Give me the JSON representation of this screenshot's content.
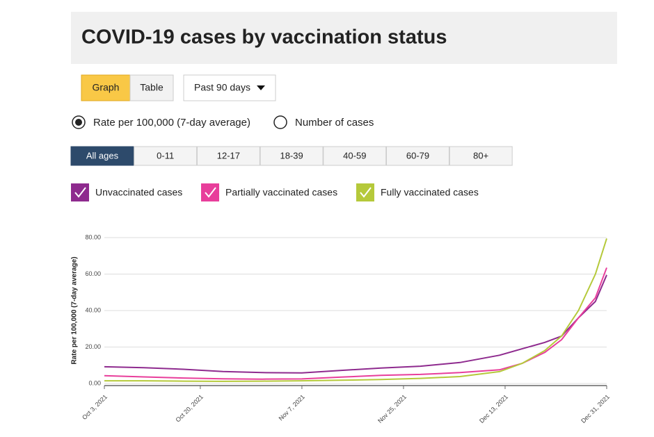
{
  "controls": {
    "view_buttons": [
      "Graph",
      "Table"
    ],
    "period": "Past 90 days",
    "measures": [
      "Rate per 100,000 (7-day average)",
      "Number of cases"
    ],
    "age_groups": [
      "All ages",
      "0-11",
      "12-17",
      "18-39",
      "40-59",
      "60-79",
      "80+"
    ]
  },
  "chart_data": {
    "type": "line",
    "title": "COVID-19 cases by vaccination status",
    "y_label": "Rate per 100,000 (7-day average)",
    "x": [
      "2021-10-03",
      "2021-10-10",
      "2021-10-17",
      "2021-10-24",
      "2021-10-31",
      "2021-11-07",
      "2021-11-14",
      "2021-11-21",
      "2021-11-28",
      "2021-12-05",
      "2021-12-12",
      "2021-12-16",
      "2021-12-20",
      "2021-12-23",
      "2021-12-26",
      "2021-12-29",
      "2021-12-31"
    ],
    "xlim": [
      "2021-10-03",
      "2021-12-31"
    ],
    "xticks": [
      {
        "value": "2021-10-03",
        "label": "Oct 3, 2021"
      },
      {
        "value": "2021-10-20",
        "label": "Oct 20, 2021"
      },
      {
        "value": "2021-11-07",
        "label": "Nov 7, 2021"
      },
      {
        "value": "2021-11-25",
        "label": "Nov 25, 2021"
      },
      {
        "value": "2021-12-13",
        "label": "Dec 13, 2021"
      },
      {
        "value": "2021-12-31",
        "label": "Dec 31, 2021"
      }
    ],
    "ylim": [
      0,
      80
    ],
    "yticks": [
      {
        "value": 0,
        "label": "0.00"
      },
      {
        "value": 20,
        "label": "20.00"
      },
      {
        "value": 40,
        "label": "40.00"
      },
      {
        "value": 60,
        "label": "60.00"
      },
      {
        "value": 80,
        "label": "80.00"
      }
    ],
    "grid": true,
    "series": [
      {
        "name": "Unvaccinated cases",
        "color": "#8e2a8e",
        "values": [
          9.2,
          8.7,
          7.8,
          6.6,
          6.0,
          5.8,
          7.2,
          8.5,
          9.5,
          11.5,
          15.5,
          19,
          22.5,
          26,
          36,
          45,
          59.5
        ]
      },
      {
        "name": "Partially vaccinated cases",
        "color": "#e83e9b",
        "values": [
          4.3,
          3.6,
          3.0,
          2.6,
          2.4,
          2.5,
          3.5,
          4.5,
          5.0,
          6.0,
          7.5,
          11,
          17,
          24,
          36,
          47,
          63.5
        ]
      },
      {
        "name": "Fully vaccinated cases",
        "color": "#b5c93a",
        "values": [
          1.5,
          1.5,
          1.3,
          1.2,
          1.3,
          1.5,
          1.8,
          2.2,
          2.8,
          3.8,
          6.5,
          11,
          18,
          26,
          40,
          60,
          79.5
        ]
      }
    ]
  }
}
